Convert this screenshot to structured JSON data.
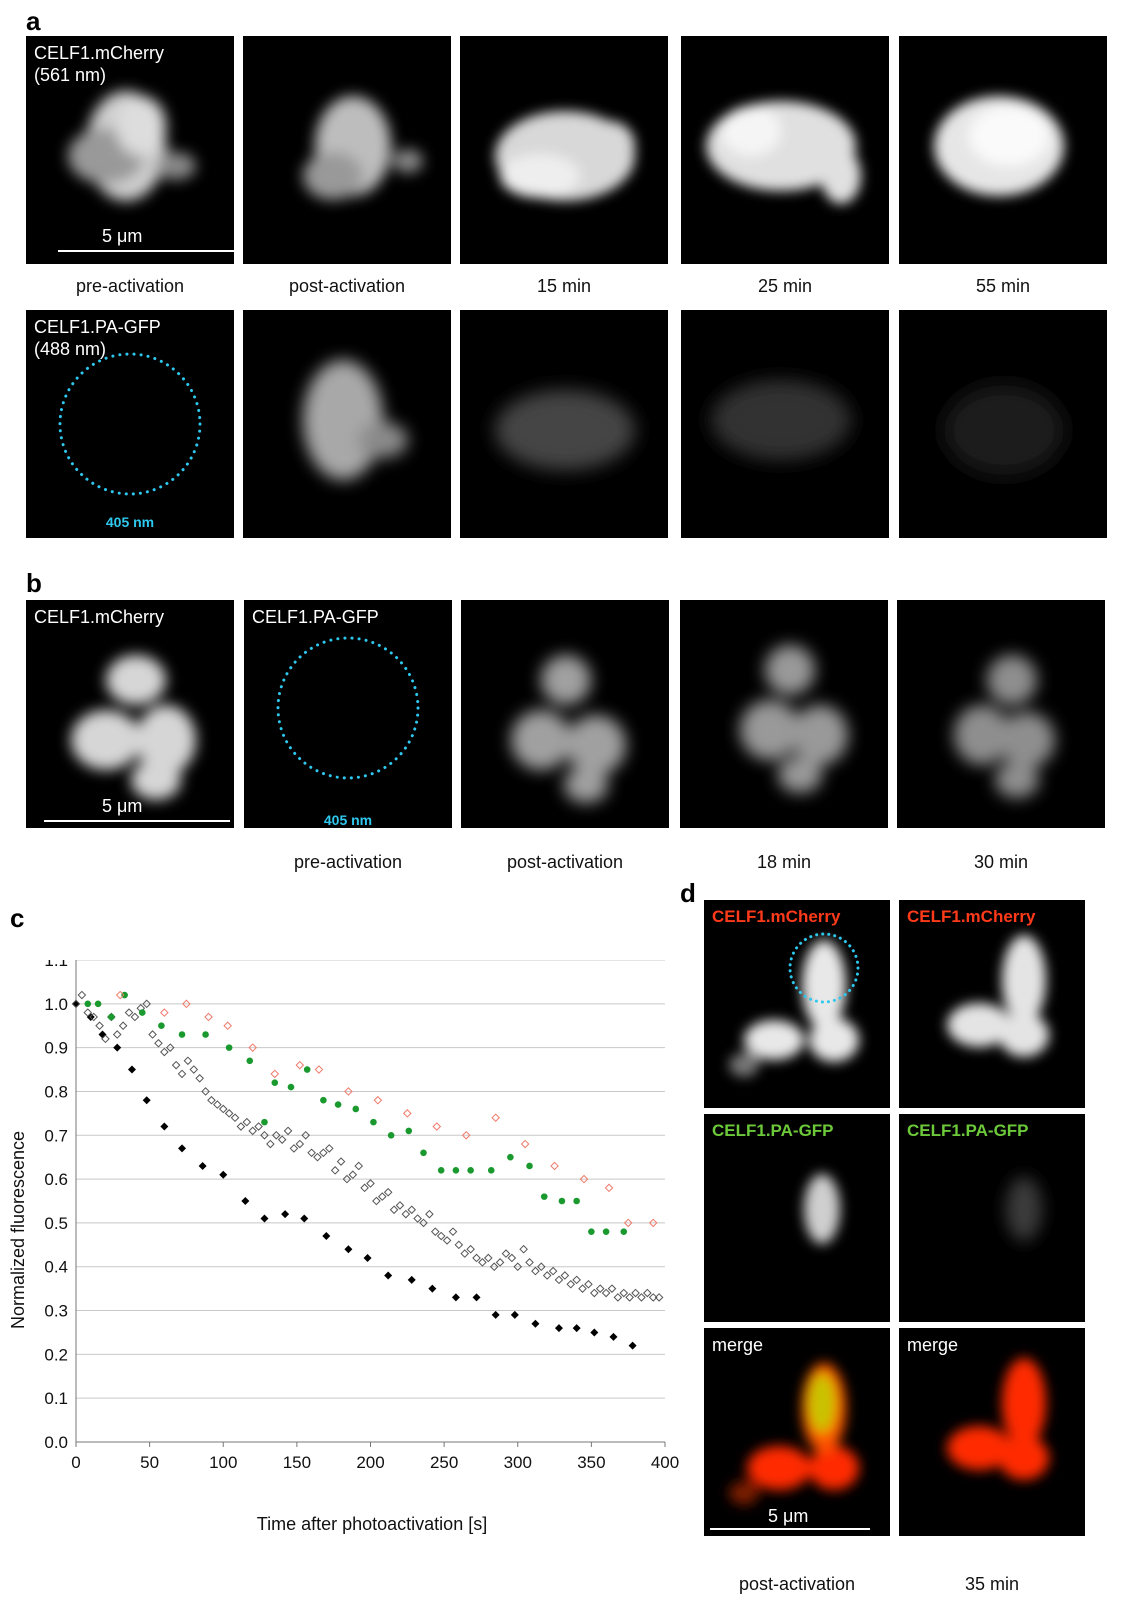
{
  "panels": {
    "a": {
      "letter": "a",
      "row1": {
        "channel_label": "CELF1.mCherry\n(561 nm)",
        "scale_label": "5 μm",
        "captions": [
          "pre-activation",
          "post-activation",
          "15 min",
          "25 min",
          "55 min"
        ]
      },
      "row2": {
        "channel_label": "CELF1.PA-GFP\n(488 nm)",
        "laser_label": "405 nm"
      }
    },
    "b": {
      "letter": "b",
      "label_mcherry": "CELF1.mCherry",
      "label_pagfp": "CELF1.PA-GFP",
      "scale_label": "5 μm",
      "laser_label": "405 nm",
      "captions": [
        "pre-activation",
        "post-activation",
        "18 min",
        "30 min"
      ]
    },
    "c": {
      "letter": "c"
    },
    "d": {
      "letter": "d",
      "labels_mcherry": [
        "CELF1.mCherry",
        "CELF1.mCherry"
      ],
      "labels_pagfp": [
        "CELF1.PA-GFP",
        "CELF1.PA-GFP"
      ],
      "labels_merge": [
        "merge",
        "merge"
      ],
      "scale_label": "5 μm",
      "captions": [
        "post-activation",
        "35 min"
      ],
      "colors": {
        "mcherry_label": "#ff3a1a",
        "pagfp_label": "#6cc93a"
      }
    }
  },
  "colors": {
    "laser": "#2ec8ee",
    "green_series": "#1a9a2e",
    "red_series": "#f07a6a",
    "black_series": "#000000",
    "grid": "#c8c8c8"
  },
  "chart_data": {
    "type": "scatter",
    "xlabel": "Time after photoactivation [s]",
    "ylabel": "Normalized fluorescence",
    "xlim": [
      0,
      400
    ],
    "ylim": [
      0,
      1.1
    ],
    "xticks": [
      0,
      50,
      100,
      150,
      200,
      250,
      300,
      350,
      400
    ],
    "yticks": [
      "0.0",
      "0.1",
      "0.2",
      "0.3",
      "0.4",
      "0.5",
      "0.6",
      "0.7",
      "0.8",
      "0.9",
      "1.0",
      "1.1"
    ],
    "grid": "horizontal",
    "series": [
      {
        "marker": "filled-diamond",
        "color": "#000000",
        "x": [
          0,
          10,
          18,
          28,
          38,
          48,
          60,
          72,
          86,
          100,
          115,
          128,
          142,
          155,
          170,
          185,
          198,
          212,
          228,
          242,
          258,
          272,
          285,
          298,
          312,
          328,
          340,
          352,
          365,
          378
        ],
        "y": [
          1.0,
          0.97,
          0.93,
          0.9,
          0.85,
          0.78,
          0.72,
          0.67,
          0.63,
          0.61,
          0.55,
          0.51,
          0.52,
          0.51,
          0.47,
          0.44,
          0.42,
          0.38,
          0.37,
          0.35,
          0.33,
          0.33,
          0.29,
          0.29,
          0.27,
          0.26,
          0.26,
          0.25,
          0.24,
          0.22
        ]
      },
      {
        "marker": "open-diamond",
        "color": "#555555",
        "x": [
          0,
          4,
          8,
          12,
          16,
          20,
          24,
          28,
          32,
          36,
          40,
          44,
          48,
          52,
          56,
          60,
          64,
          68,
          72,
          76,
          80,
          84,
          88,
          92,
          96,
          100,
          104,
          108,
          112,
          116,
          120,
          124,
          128,
          132,
          136,
          140,
          144,
          148,
          152,
          156,
          160,
          164,
          168,
          172,
          176,
          180,
          184,
          188,
          192,
          196,
          200,
          204,
          208,
          212,
          216,
          220,
          224,
          228,
          232,
          236,
          240,
          244,
          248,
          252,
          256,
          260,
          264,
          268,
          272,
          276,
          280,
          284,
          288,
          292,
          296,
          300,
          304,
          308,
          312,
          316,
          320,
          324,
          328,
          332,
          336,
          340,
          344,
          348,
          352,
          356,
          360,
          364,
          368,
          372,
          376,
          380,
          384,
          388,
          392,
          396
        ],
        "y": [
          1.0,
          1.02,
          0.98,
          0.97,
          0.95,
          0.92,
          0.97,
          0.93,
          0.95,
          0.98,
          0.97,
          0.99,
          1.0,
          0.93,
          0.91,
          0.89,
          0.9,
          0.86,
          0.84,
          0.87,
          0.85,
          0.83,
          0.8,
          0.78,
          0.77,
          0.76,
          0.75,
          0.74,
          0.72,
          0.73,
          0.71,
          0.72,
          0.7,
          0.68,
          0.7,
          0.69,
          0.71,
          0.67,
          0.68,
          0.7,
          0.66,
          0.65,
          0.66,
          0.67,
          0.62,
          0.64,
          0.6,
          0.61,
          0.63,
          0.58,
          0.59,
          0.55,
          0.56,
          0.57,
          0.53,
          0.54,
          0.52,
          0.53,
          0.51,
          0.5,
          0.52,
          0.48,
          0.47,
          0.46,
          0.48,
          0.45,
          0.43,
          0.44,
          0.42,
          0.41,
          0.42,
          0.4,
          0.41,
          0.43,
          0.42,
          0.4,
          0.44,
          0.41,
          0.39,
          0.4,
          0.38,
          0.39,
          0.37,
          0.38,
          0.36,
          0.37,
          0.35,
          0.36,
          0.34,
          0.35,
          0.34,
          0.35,
          0.33,
          0.34,
          0.33,
          0.34,
          0.33,
          0.34,
          0.33,
          0.33
        ]
      },
      {
        "marker": "filled-circle",
        "color": "#1a9a2e",
        "x": [
          8,
          15,
          24,
          33,
          45,
          58,
          72,
          88,
          104,
          118,
          128,
          135,
          146,
          157,
          168,
          178,
          190,
          202,
          214,
          226,
          236,
          248,
          258,
          268,
          282,
          295,
          308,
          318,
          330,
          340,
          350,
          360,
          372
        ],
        "y": [
          1.0,
          1.0,
          0.97,
          1.02,
          0.98,
          0.95,
          0.93,
          0.93,
          0.9,
          0.87,
          0.73,
          0.82,
          0.81,
          0.85,
          0.78,
          0.77,
          0.76,
          0.73,
          0.7,
          0.71,
          0.66,
          0.62,
          0.62,
          0.62,
          0.62,
          0.65,
          0.63,
          0.56,
          0.55,
          0.55,
          0.48,
          0.48,
          0.48
        ]
      },
      {
        "marker": "open-diamond",
        "color": "#f07a6a",
        "x": [
          30,
          60,
          75,
          90,
          103,
          120,
          135,
          152,
          165,
          185,
          205,
          225,
          245,
          265,
          285,
          305,
          325,
          345,
          362,
          375,
          392
        ],
        "y": [
          1.02,
          0.98,
          1.0,
          0.97,
          0.95,
          0.9,
          0.84,
          0.86,
          0.85,
          0.8,
          0.78,
          0.75,
          0.72,
          0.7,
          0.74,
          0.68,
          0.63,
          0.6,
          0.58,
          0.5,
          0.5
        ]
      }
    ]
  }
}
